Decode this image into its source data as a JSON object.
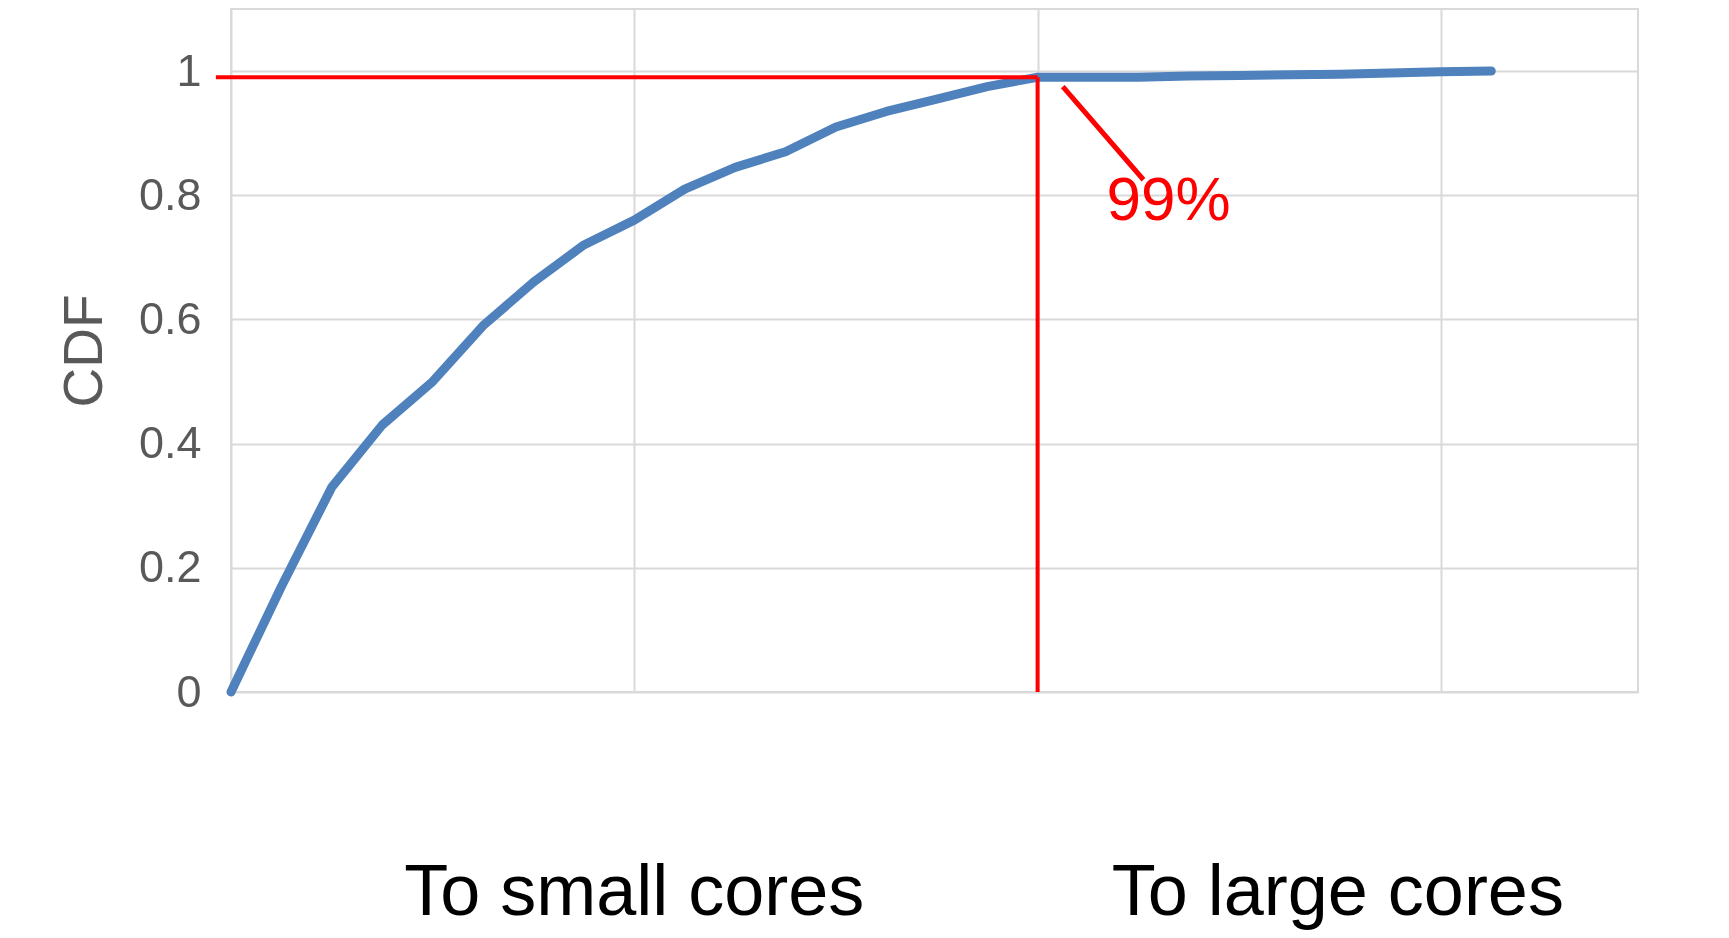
{
  "chart_data": {
    "type": "line",
    "ylabel": "CDF",
    "categories": [
      null,
      null,
      null,
      null,
      null,
      null,
      null,
      null,
      null,
      null,
      null,
      null,
      null,
      null,
      null,
      null,
      null,
      null,
      null,
      null,
      null,
      null,
      null,
      null,
      null,
      null
    ],
    "series": [
      {
        "color": "#4f81bd",
        "values": [
          0,
          0.17,
          0.33,
          0.43,
          0.5,
          0.59,
          0.66,
          0.72,
          0.76,
          0.81,
          0.845,
          0.87,
          0.91,
          0.935,
          0.955,
          0.975,
          0.99,
          0.99,
          0.99,
          0.992,
          0.993,
          0.994,
          0.995,
          0.997,
          0.999,
          1.0
        ]
      }
    ],
    "ylim": [
      0,
      1.1
    ],
    "yticks": [
      0,
      0.2,
      0.4,
      0.6,
      0.8,
      1
    ],
    "grid": true,
    "ref_lines": [
      {
        "axis": "y",
        "value": 0.99,
        "color": "#ff0000"
      },
      {
        "axis": "x",
        "color": "#ff0000"
      }
    ],
    "annotations": [
      {
        "text": "99%",
        "y": 0.99
      },
      "To small cores",
      "To large cores"
    ]
  }
}
